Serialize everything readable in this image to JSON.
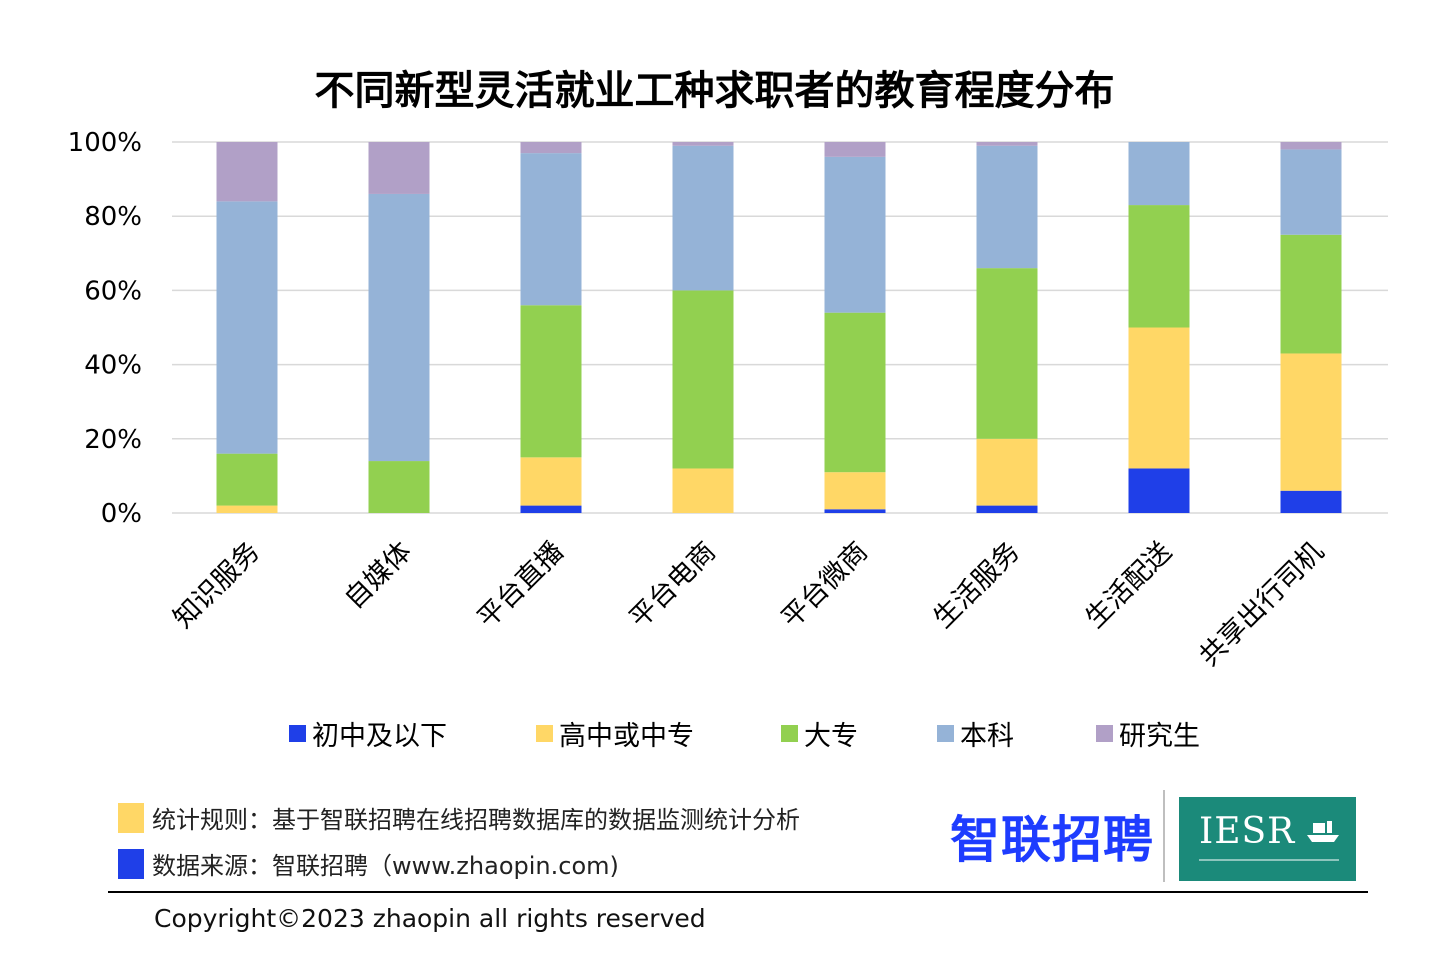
{
  "colors": {
    "初中及以下": "#1f3fe8",
    "高中或中专": "#ffd766",
    "大专": "#92d050",
    "本科": "#95b3d7",
    "研究生": "#b1a0c7",
    "grid": "#d9d9d9",
    "brand_blue": "#1e3cff",
    "iesr_green": "#1b8a7a"
  },
  "chart_data": {
    "type": "bar",
    "stacked": true,
    "title": "不同新型灵活就业工种求职者的教育程度分布",
    "categories": [
      "知识服务",
      "自媒体",
      "平台直播",
      "平台电商",
      "平台微商",
      "生活服务",
      "生活配送",
      "共享出行司机"
    ],
    "series": [
      {
        "name": "初中及以下",
        "values": [
          0,
          0,
          2,
          0,
          1,
          2,
          12,
          6
        ]
      },
      {
        "name": "高中或中专",
        "values": [
          2,
          0,
          13,
          12,
          10,
          18,
          38,
          37
        ]
      },
      {
        "name": "大专",
        "values": [
          14,
          14,
          41,
          48,
          43,
          46,
          33,
          32
        ]
      },
      {
        "name": "本科",
        "values": [
          68,
          72,
          41,
          39,
          42,
          33,
          17,
          23
        ]
      },
      {
        "name": "研究生",
        "values": [
          16,
          14,
          3,
          1,
          4,
          1,
          0,
          2
        ]
      }
    ],
    "yticks": [
      "0%",
      "20%",
      "40%",
      "60%",
      "80%",
      "100%"
    ],
    "ylim": [
      0,
      100
    ],
    "grid": true,
    "legend": "bottom"
  },
  "notes": {
    "rule": "统计规则：基于智联招聘在线招聘数据库的数据监测统计分析",
    "source": "数据来源：智联招聘（www.zhaopin.com)"
  },
  "brand": {
    "zhaopin": "智联招聘",
    "iesr": "IESR"
  },
  "copyright": "Copyright©2023 zhaopin all rights reserved"
}
